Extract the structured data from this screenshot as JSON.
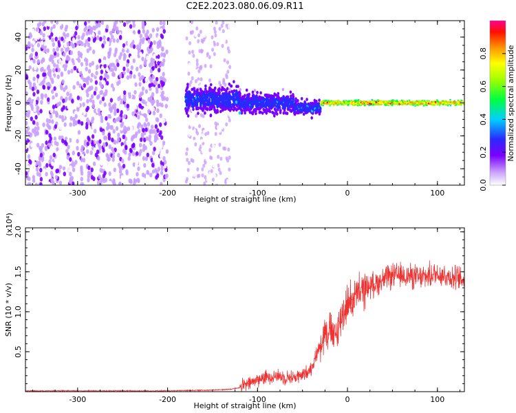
{
  "title": "C2E2.2023.080.06.09.R11",
  "colors": {
    "snr_line": "#ee3333",
    "spectrogram_low": "#6a00ff",
    "frame": "#000000"
  },
  "chart_data": [
    {
      "type": "heatmap",
      "xlabel": "Height of straight line (km)",
      "ylabel": "Frequency (Hz)",
      "xlim": [
        -358,
        130
      ],
      "ylim": [
        -50,
        50
      ],
      "xticks": [
        -300,
        -200,
        -100,
        0,
        100
      ],
      "yticks": [
        -40,
        -20,
        0,
        20,
        40
      ],
      "colorbar": {
        "label": "Normalized spectral amplitude",
        "ticks": [
          "0.0",
          "0.2",
          "0.4",
          "0.6",
          "0.8"
        ],
        "range": [
          0,
          1
        ],
        "colormap": "rainbow (white-violet-blue-cyan-green-yellow-orange-red-magenta)"
      },
      "regions": [
        {
          "x_range": [
            -358,
            -200
          ],
          "content": "noise speckle across full frequency range (-50 to 50 Hz), violet"
        },
        {
          "x_range": [
            -180,
            -130
          ],
          "content": "faint noise speckle, light violet"
        },
        {
          "x_range": [
            -180,
            -30
          ],
          "content": "signal band near 0 Hz (about -10 to 15 Hz), blue/violet with cyan spots"
        },
        {
          "x_range": [
            -30,
            130
          ],
          "content": "narrow signal band at 0 Hz, width about 5 Hz, green/yellow/red core"
        }
      ]
    },
    {
      "type": "line",
      "xlabel": "Height of straight line (km)",
      "ylabel": "SNR (10 * v/v)",
      "y_multiplier": "(x10⁴)",
      "xlim": [
        -358,
        130
      ],
      "ylim": [
        0,
        2.05
      ],
      "xticks": [
        -300,
        -200,
        -100,
        0,
        100
      ],
      "yticks": [
        0.5,
        1.0,
        1.5,
        2.0
      ],
      "ytick_labels": [
        "0.5",
        "1.0",
        "1.5",
        "2.0"
      ],
      "series": [
        {
          "x": [
            -358,
            -300,
            -250,
            -200,
            -150,
            -130,
            -120,
            -110,
            -100,
            -90,
            -80,
            -70,
            -60,
            -50,
            -45,
            -40,
            -35,
            -30,
            -25,
            -20,
            -15,
            -10,
            -5,
            0,
            5,
            10,
            15,
            20,
            25,
            30,
            40,
            50,
            60,
            70,
            80,
            90,
            100,
            110,
            120,
            130
          ],
          "values": [
            0.01,
            0.01,
            0.01,
            0.01,
            0.02,
            0.03,
            0.05,
            0.1,
            0.15,
            0.18,
            0.2,
            0.18,
            0.18,
            0.2,
            0.25,
            0.3,
            0.45,
            0.6,
            0.75,
            0.8,
            0.65,
            0.8,
            1.0,
            1.1,
            1.15,
            1.2,
            1.25,
            1.3,
            1.32,
            1.35,
            1.4,
            1.45,
            1.45,
            1.45,
            1.42,
            1.45,
            1.48,
            1.45,
            1.42,
            1.4
          ]
        }
      ]
    }
  ]
}
